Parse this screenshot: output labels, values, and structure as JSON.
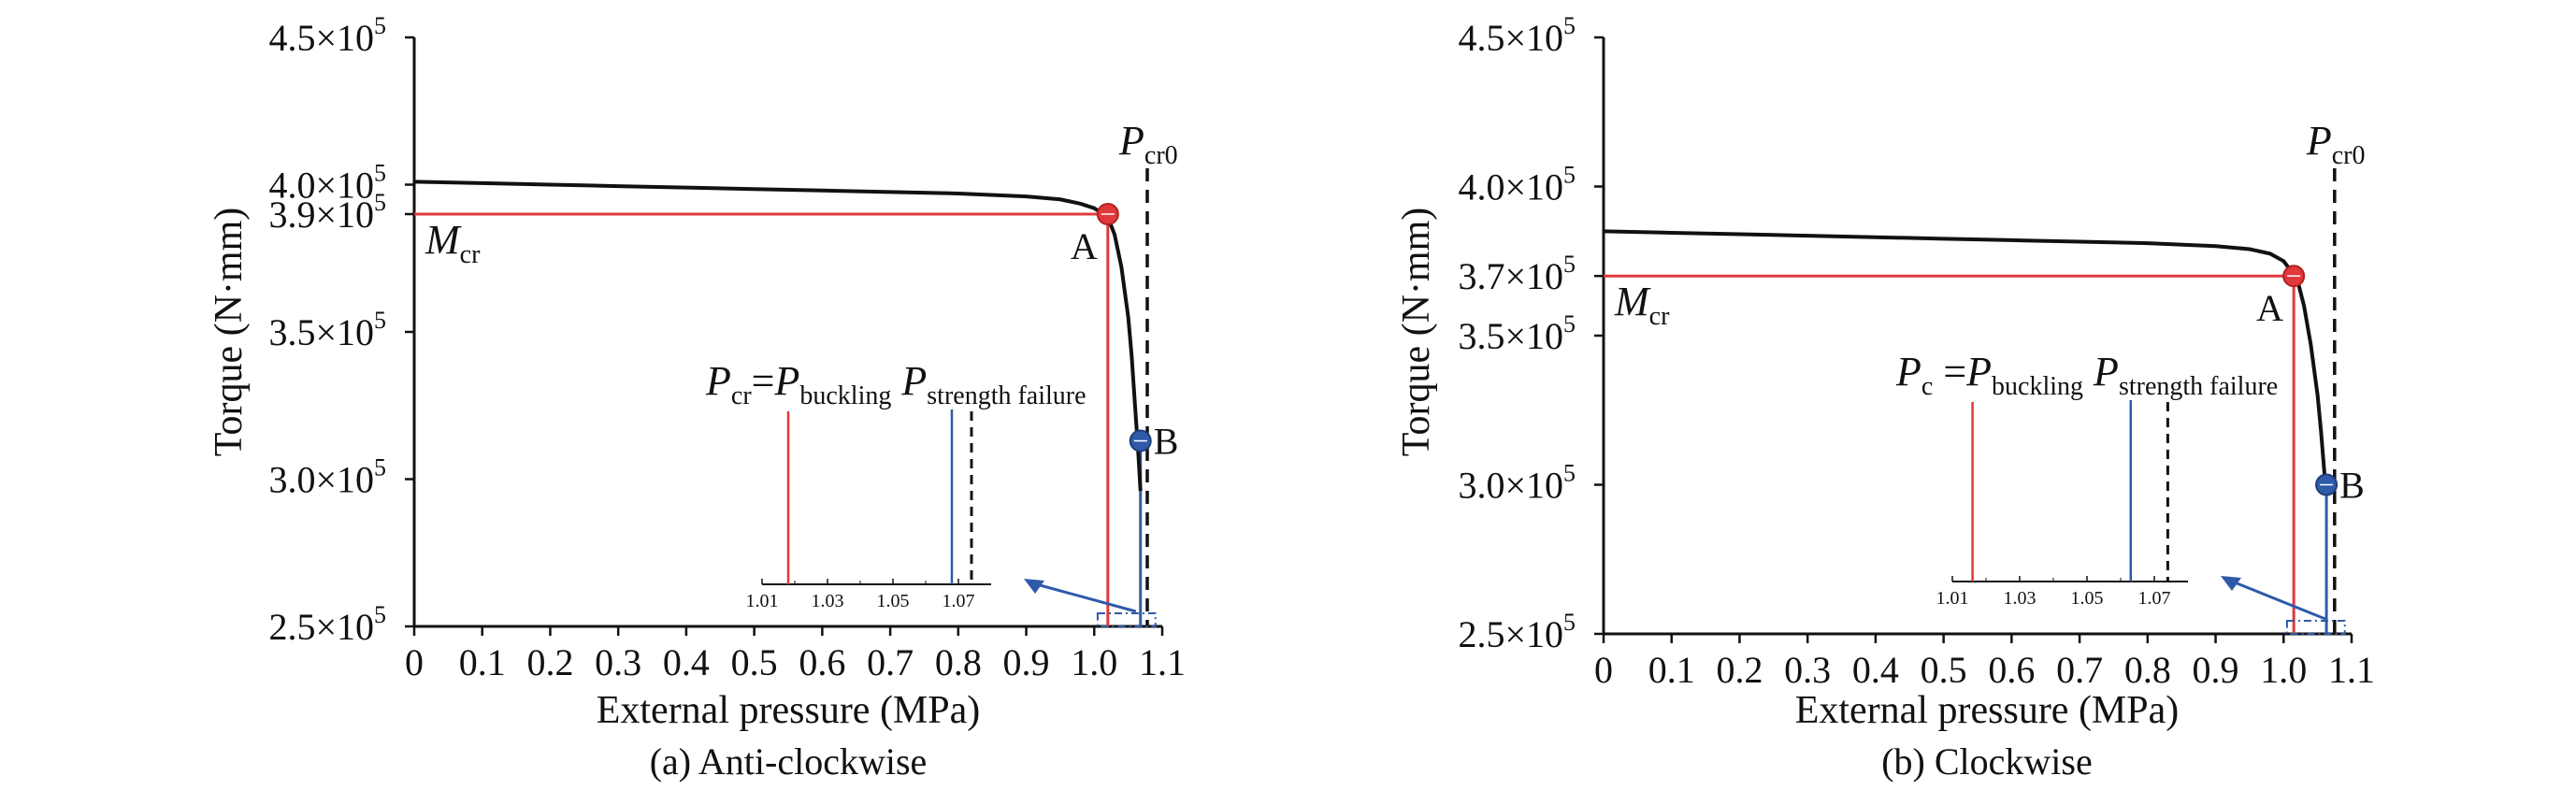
{
  "chart_data": [
    {
      "type": "line",
      "caption": "(a) Anti-clockwise",
      "xlabel": "External pressure (MPa)",
      "ylabel": "Torque (N·mm)",
      "xlim": [
        0,
        1.1
      ],
      "ylim": [
        250000,
        450000
      ],
      "x_ticks": [
        {
          "value": 0,
          "label": "0"
        },
        {
          "value": 0.1,
          "label": "0.1"
        },
        {
          "value": 0.2,
          "label": "0.2"
        },
        {
          "value": 0.3,
          "label": "0.3"
        },
        {
          "value": 0.4,
          "label": "0.4"
        },
        {
          "value": 0.5,
          "label": "0.5"
        },
        {
          "value": 0.6,
          "label": "0.6"
        },
        {
          "value": 0.7,
          "label": "0.7"
        },
        {
          "value": 0.8,
          "label": "0.8"
        },
        {
          "value": 0.9,
          "label": "0.9"
        },
        {
          "value": 1.0,
          "label": "1.0"
        },
        {
          "value": 1.1,
          "label": "1.1"
        }
      ],
      "y_ticks": [
        {
          "value": 250000,
          "mant": "2.5×10",
          "exp": "5"
        },
        {
          "value": 300000,
          "mant": "3.0×10",
          "exp": "5"
        },
        {
          "value": 350000,
          "mant": "3.5×10",
          "exp": "5"
        },
        {
          "value": 390000,
          "mant": "3.9×10",
          "exp": "5"
        },
        {
          "value": 400000,
          "mant": "4.0×10",
          "exp": "5"
        },
        {
          "value": 450000,
          "mant": "4.5×10",
          "exp": "5"
        }
      ],
      "curve": {
        "x": [
          0,
          0.1,
          0.2,
          0.3,
          0.4,
          0.5,
          0.6,
          0.7,
          0.8,
          0.9,
          0.95,
          0.98,
          1.0,
          1.02,
          1.03,
          1.04,
          1.05,
          1.055,
          1.06,
          1.065,
          1.068
        ],
        "y": [
          401000,
          400500,
          400000,
          399500,
          399000,
          398500,
          398000,
          397500,
          397000,
          396000,
          395000,
          393500,
          392000,
          389000,
          383000,
          372000,
          355000,
          342000,
          325000,
          308000,
          296000
        ],
        "color": "#111111"
      },
      "point_A": {
        "label": "A",
        "x": 1.02,
        "y": 390000,
        "color": "#e0383b"
      },
      "point_B": {
        "label": "B",
        "x": 1.068,
        "y": 313000,
        "color": "#2f5aa8"
      },
      "m_line": {
        "label_main": "M",
        "label_sub": "cr",
        "y": 390000,
        "color": "#e0383b"
      },
      "pcr0": {
        "label_main": "P",
        "label_sub": "cr0",
        "x": 1.078
      },
      "blue_drop_x": 1.068,
      "legend": {
        "red_main": "P",
        "red_sub": "cr",
        "eq": "=",
        "buckling_main": "P",
        "buckling_sub": "buckling",
        "strength_main": "P",
        "strength_sub": "strength failure"
      },
      "inset": {
        "xlim": [
          1.01,
          1.08
        ],
        "ticks": [
          {
            "value": 1.01,
            "label": "1.01"
          },
          {
            "value": 1.03,
            "label": "1.03"
          },
          {
            "value": 1.05,
            "label": "1.05"
          },
          {
            "value": 1.07,
            "label": "1.07"
          }
        ],
        "red_x": 1.018,
        "blue_x": 1.068,
        "dash_x": 1.074
      }
    },
    {
      "type": "line",
      "caption": "(b) Clockwise",
      "xlabel": "External pressure (MPa)",
      "ylabel": "Torque (N·mm)",
      "xlim": [
        0,
        1.1
      ],
      "ylim": [
        250000,
        450000
      ],
      "x_ticks": [
        {
          "value": 0,
          "label": "0"
        },
        {
          "value": 0.1,
          "label": "0.1"
        },
        {
          "value": 0.2,
          "label": "0.2"
        },
        {
          "value": 0.3,
          "label": "0.3"
        },
        {
          "value": 0.4,
          "label": "0.4"
        },
        {
          "value": 0.5,
          "label": "0.5"
        },
        {
          "value": 0.6,
          "label": "0.6"
        },
        {
          "value": 0.7,
          "label": "0.7"
        },
        {
          "value": 0.8,
          "label": "0.8"
        },
        {
          "value": 0.9,
          "label": "0.9"
        },
        {
          "value": 1.0,
          "label": "1.0"
        },
        {
          "value": 1.1,
          "label": "1.1"
        }
      ],
      "y_ticks": [
        {
          "value": 250000,
          "mant": "2.5×10",
          "exp": "5"
        },
        {
          "value": 300000,
          "mant": "3.0×10",
          "exp": "5"
        },
        {
          "value": 350000,
          "mant": "3.5×10",
          "exp": "5"
        },
        {
          "value": 370000,
          "mant": "3.7×10",
          "exp": "5"
        },
        {
          "value": 400000,
          "mant": "4.0×10",
          "exp": "5"
        },
        {
          "value": 450000,
          "mant": "4.5×10",
          "exp": "5"
        }
      ],
      "curve": {
        "x": [
          0,
          0.1,
          0.2,
          0.3,
          0.4,
          0.5,
          0.6,
          0.7,
          0.8,
          0.9,
          0.95,
          0.98,
          1.0,
          1.02,
          1.03,
          1.04,
          1.05,
          1.055,
          1.06,
          1.063
        ],
        "y": [
          385000,
          384500,
          384000,
          383500,
          383000,
          382500,
          382000,
          381500,
          381000,
          380000,
          379000,
          377500,
          375000,
          369000,
          360000,
          347000,
          330000,
          318000,
          304000,
          298000
        ],
        "color": "#111111"
      },
      "point_A": {
        "label": "A",
        "x": 1.015,
        "y": 370000,
        "color": "#e0383b"
      },
      "point_B": {
        "label": "B",
        "x": 1.063,
        "y": 300000,
        "color": "#2f5aa8"
      },
      "m_line": {
        "label_main": "M",
        "label_sub": "cr",
        "y": 370000,
        "color": "#e0383b"
      },
      "pcr0": {
        "label_main": "P",
        "label_sub": "cr0",
        "x": 1.075
      },
      "blue_drop_x": 1.063,
      "legend": {
        "red_main": "P",
        "red_sub": "c",
        "eq": " =",
        "buckling_main": "P",
        "buckling_sub": "buckling",
        "strength_main": "P",
        "strength_sub": "strength failure"
      },
      "inset": {
        "xlim": [
          1.01,
          1.08
        ],
        "ticks": [
          {
            "value": 1.01,
            "label": "1.01"
          },
          {
            "value": 1.03,
            "label": "1.03"
          },
          {
            "value": 1.05,
            "label": "1.05"
          },
          {
            "value": 1.07,
            "label": "1.07"
          }
        ],
        "red_x": 1.016,
        "blue_x": 1.063,
        "dash_x": 1.074
      }
    }
  ]
}
